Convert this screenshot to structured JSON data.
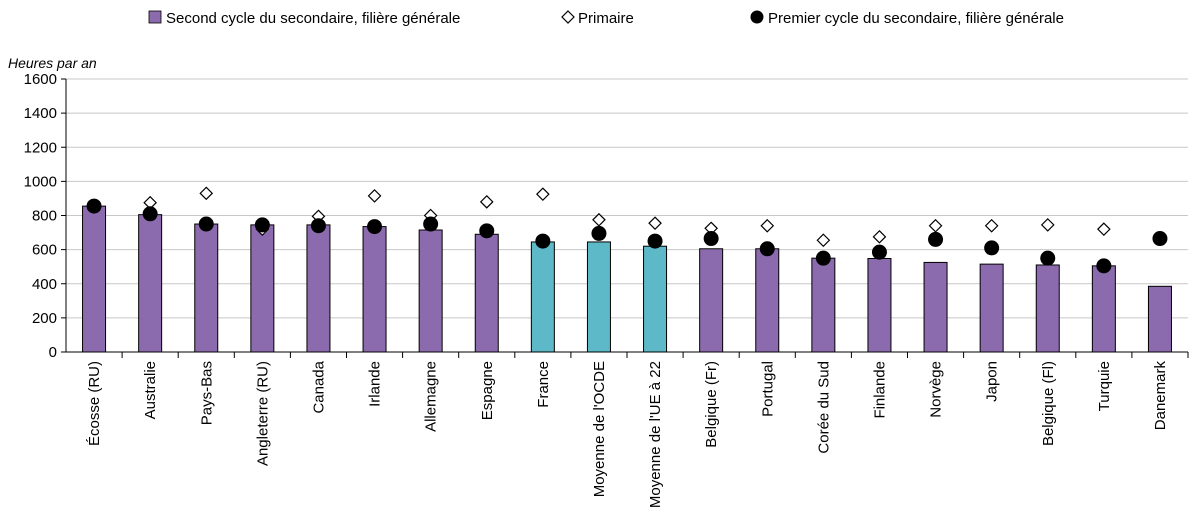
{
  "chart_data": {
    "type": "bar",
    "ylabel": "Heures par an",
    "ylim": [
      0,
      1600
    ],
    "yticks": [
      0,
      200,
      400,
      600,
      800,
      1000,
      1200,
      1400,
      1600
    ],
    "grid": true,
    "legend_position": "top",
    "categories": [
      "Écosse (RU)",
      "Australie",
      "Pays-Bas",
      "Angleterre (RU)",
      "Canada",
      "Irlande",
      "Allemagne",
      "Espagne",
      "France",
      "Moyenne de l'OCDE",
      "Moyenne de l'UE à 22",
      "Belgique (Fr)",
      "Portugal",
      "Corée du Sud",
      "Finlande",
      "Norvège",
      "Japon",
      "Belgique (Fl)",
      "Turquie",
      "Danemark"
    ],
    "highlight_categories": [
      "France",
      "Moyenne de l'OCDE",
      "Moyenne de l'UE à 22"
    ],
    "series": [
      {
        "name": "Second cycle du secondaire, filière générale",
        "kind": "bar",
        "color": "#8B6BAE",
        "highlight_color": "#5DB8C8",
        "values": [
          855,
          805,
          750,
          745,
          745,
          735,
          715,
          690,
          645,
          645,
          620,
          605,
          605,
          550,
          548,
          525,
          515,
          510,
          505,
          385
        ]
      },
      {
        "name": "Primaire",
        "kind": "marker-diamond",
        "color": "#ffffff",
        "values": [
          null,
          875,
          930,
          720,
          795,
          915,
          800,
          880,
          925,
          775,
          755,
          725,
          740,
          655,
          675,
          740,
          740,
          745,
          720,
          null
        ]
      },
      {
        "name": "Premier cycle du secondaire, filière générale",
        "kind": "marker-circle",
        "color": "#000000",
        "values": [
          855,
          810,
          750,
          745,
          740,
          735,
          750,
          710,
          650,
          695,
          650,
          665,
          605,
          550,
          585,
          660,
          610,
          550,
          505,
          665
        ]
      }
    ]
  }
}
